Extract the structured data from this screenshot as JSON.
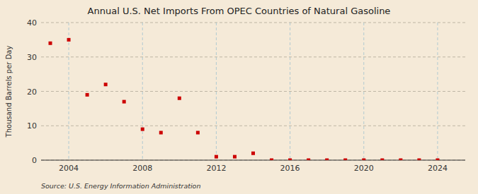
{
  "chart_data": {
    "type": "scatter",
    "title": "Annual U.S. Net Imports From OPEC Countries of Natural Gasoline",
    "y_label": "Thousand Barrels per Day",
    "annotations": [
      "Source: U.S. Energy Information Administration"
    ],
    "x": [
      2003,
      2004,
      2005,
      2006,
      2007,
      2008,
      2009,
      2010,
      2011,
      2012,
      2013,
      2014,
      2015,
      2016,
      2017,
      2018,
      2019,
      2020,
      2021,
      2022,
      2023,
      2024
    ],
    "values": [
      34,
      35,
      19,
      22,
      17,
      9,
      8,
      18,
      8,
      1,
      1,
      2,
      0,
      0,
      0,
      0,
      0,
      0,
      0,
      0,
      0,
      0
    ],
    "color": "#cc0000",
    "marker": "square",
    "xlim": [
      2002.5,
      2025.5
    ],
    "ylim": [
      0,
      40
    ],
    "xticks": [
      2004,
      2008,
      2012,
      2016,
      2020,
      2024
    ],
    "yticks": [
      0,
      10,
      20,
      30,
      40
    ],
    "grid": true
  }
}
